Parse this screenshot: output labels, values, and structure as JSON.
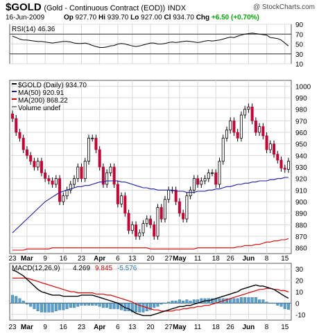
{
  "header": {
    "symbol": "$GOLD",
    "description": "(Gold - Continuous Contract (EOD))",
    "exchange": "INDX",
    "watermark": "@ StockCharts.com",
    "date": "16-Jun-2009",
    "open_label": "Op",
    "open": "927.70",
    "high_label": "Hi",
    "high": "939.70",
    "low_label": "Lo",
    "low": "927.00",
    "close_label": "Cl",
    "close": "934.70",
    "change_label": "Chg",
    "change": "+6.50 (+0.70%)"
  },
  "chart_data": [
    {
      "type": "line",
      "panel": "rsi",
      "legend": "RSI(14)",
      "legend_value": "46.36",
      "y_ticks": [
        90,
        70,
        50,
        30,
        10
      ],
      "ylim": [
        10,
        90
      ],
      "grid": true,
      "reference_lines": [
        70,
        30
      ],
      "series": [
        {
          "name": "RSI(14)",
          "color": "#000000",
          "values": [
            66,
            63,
            60,
            58,
            58,
            57,
            56,
            55,
            55,
            54,
            53,
            52,
            53,
            54,
            55,
            55,
            54,
            52,
            51,
            51,
            52,
            50,
            47,
            45,
            43,
            43,
            44,
            46,
            47,
            50,
            51,
            50,
            48,
            46,
            45,
            46,
            48,
            50,
            52,
            52,
            50,
            50,
            51,
            53,
            54,
            53,
            54,
            55,
            56,
            55,
            54,
            53,
            54,
            56,
            57,
            56,
            57,
            58,
            60,
            62,
            64,
            63,
            66,
            68,
            70,
            71,
            72,
            71,
            70,
            69,
            68,
            63,
            62,
            61,
            58,
            52,
            46
          ]
        }
      ]
    },
    {
      "type": "candlestick",
      "panel": "price",
      "title": "$GOLD (Daily) 934.70",
      "y_ticks": [
        860,
        870,
        880,
        890,
        900,
        910,
        920,
        930,
        940,
        950,
        960,
        970,
        980,
        990,
        1000
      ],
      "ylim": [
        855,
        1005
      ],
      "grid": true,
      "x_labels": [
        "23",
        "Mar",
        "9",
        "16",
        "23",
        "Apr",
        "6",
        "13",
        "20",
        "27",
        "May",
        "11",
        "18",
        "26",
        "Jun",
        "8",
        "15"
      ],
      "legend": [
        {
          "label": "$GOLD (Daily) 934.70",
          "color": "#000000"
        },
        {
          "label": "MA(50) 920.91",
          "color": "#1a1aaa"
        },
        {
          "label": "MA(200) 868.22",
          "color": "#dd0000"
        },
        {
          "label": "Volume undef",
          "color": "#888888"
        }
      ],
      "close": [
        972,
        960,
        955,
        945,
        940,
        935,
        930,
        935,
        925,
        920,
        918,
        915,
        920,
        900,
        905,
        910,
        915,
        920,
        930,
        920,
        935,
        955,
        955,
        945,
        930,
        915,
        925,
        930,
        915,
        898,
        905,
        890,
        875,
        880,
        870,
        873,
        881,
        885,
        880,
        870,
        895,
        885,
        902,
        910,
        910,
        900,
        890,
        885,
        905,
        910,
        920,
        915,
        918,
        920,
        925,
        925,
        915,
        935,
        955,
        962,
        970,
        960,
        955,
        975,
        980,
        982,
        970,
        960,
        965,
        957,
        945,
        950,
        941,
        936,
        929,
        928,
        935
      ],
      "ma50": {
        "name": "MA(50)",
        "color": "#1a1aaa",
        "values": [
          873,
          876,
          879,
          882,
          885,
          888,
          891,
          894,
          897,
          900,
          902,
          904,
          906,
          908,
          909,
          910,
          911,
          912,
          913,
          913,
          914,
          914,
          915,
          916,
          917,
          917,
          918,
          918,
          918,
          918,
          917,
          917,
          916,
          915,
          914,
          913,
          912,
          912,
          911,
          911,
          910,
          910,
          910,
          910,
          910,
          909,
          909,
          909,
          908,
          908,
          908,
          909,
          909,
          909,
          910,
          910,
          911,
          911,
          912,
          913,
          913,
          914,
          915,
          915,
          916,
          916,
          917,
          917,
          918,
          918,
          918,
          919,
          919,
          920,
          920,
          921,
          921
        ]
      },
      "ma200": {
        "name": "MA(200)",
        "color": "#dd0000",
        "values": [
          858,
          858,
          858,
          858,
          859,
          859,
          859,
          859,
          859,
          859,
          859,
          860,
          860,
          860,
          860,
          860,
          860,
          860,
          860,
          860,
          860,
          860,
          860,
          860,
          860,
          860,
          860,
          860,
          860,
          860,
          860,
          860,
          860,
          860,
          860,
          860,
          860,
          860,
          859,
          859,
          859,
          859,
          859,
          859,
          859,
          859,
          859,
          859,
          859,
          859,
          859,
          860,
          860,
          860,
          860,
          860,
          860,
          860,
          860,
          860,
          860,
          860,
          861,
          861,
          862,
          862,
          862,
          863,
          863,
          864,
          865,
          865,
          866,
          866,
          867,
          867,
          868
        ]
      }
    },
    {
      "type": "bar+line",
      "panel": "macd",
      "legend": [
        {
          "label": "MACD(12,26,9)",
          "color": "#000000"
        },
        {
          "label": "4.269",
          "color": "#000000"
        },
        {
          "label": "9.845",
          "color": "#dd0000"
        },
        {
          "label": "-5.576",
          "color": "#1f77b4"
        }
      ],
      "y_ticks": [
        30,
        20,
        10,
        0,
        -10
      ],
      "ylim": [
        -15,
        35
      ],
      "grid": true,
      "x_labels": [
        "23",
        "Mar",
        "9",
        "16",
        "23",
        "Apr",
        "6",
        "13",
        "20",
        "27",
        "May",
        "11",
        "18",
        "26",
        "Jun",
        "8",
        "15"
      ],
      "macd": [
        29,
        28,
        26,
        24,
        21,
        18,
        15,
        12,
        10,
        9,
        8,
        7,
        7,
        7,
        6,
        6,
        6,
        6,
        6,
        7,
        7,
        7,
        7,
        6,
        5,
        4,
        3,
        2,
        1,
        0,
        -2,
        -4,
        -5,
        -7,
        -9,
        -10,
        -11,
        -11,
        -11,
        -10,
        -9,
        -8,
        -7,
        -6,
        -5,
        -4,
        -3,
        -3,
        -2,
        -2,
        -1,
        0,
        1,
        2,
        2,
        3,
        4,
        5,
        6,
        7,
        8,
        9,
        10,
        12,
        13,
        14,
        15,
        16,
        15,
        15,
        14,
        13,
        12,
        10,
        8,
        6,
        4.269
      ],
      "signal": [
        22,
        22,
        22,
        22,
        22,
        21,
        20,
        19,
        18,
        17,
        16,
        15,
        14,
        13,
        12,
        11,
        10,
        10,
        9,
        9,
        9,
        9,
        9,
        8,
        8,
        8,
        7,
        7,
        6,
        5,
        4,
        3,
        2,
        1,
        -1,
        -2,
        -3,
        -4,
        -5,
        -6,
        -6,
        -7,
        -7,
        -7,
        -7,
        -6,
        -6,
        -5,
        -5,
        -4,
        -4,
        -3,
        -3,
        -2,
        -2,
        -1,
        0,
        1,
        2,
        3,
        4,
        5,
        6,
        7,
        8,
        9,
        10,
        11,
        12,
        12,
        13,
        13,
        12,
        12,
        11,
        11,
        9.845
      ],
      "histogram": [
        7,
        6,
        4,
        2,
        -1,
        -3,
        -5,
        -7,
        -8,
        -8,
        -8,
        -8,
        -7,
        -6,
        -6,
        -5,
        -4,
        -4,
        -3,
        -2,
        -2,
        -2,
        -2,
        -2,
        -3,
        -4,
        -4,
        -5,
        -5,
        -5,
        -6,
        -7,
        -7,
        -8,
        -8,
        -8,
        -8,
        -7,
        -6,
        -4,
        -3,
        -1,
        0,
        1,
        2,
        2,
        3,
        2,
        3,
        2,
        3,
        3,
        4,
        4,
        4,
        4,
        4,
        4,
        4,
        4,
        4,
        4,
        4,
        5,
        5,
        5,
        5,
        5,
        3,
        3,
        1,
        0,
        0,
        -2,
        -3,
        -5,
        -5.576
      ]
    }
  ]
}
